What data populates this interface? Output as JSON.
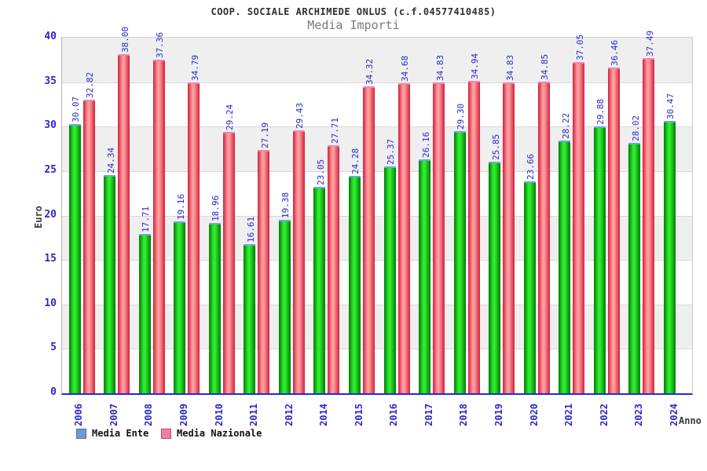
{
  "title": "COOP. SOCIALE ARCHIMEDE ONLUS (c.f.04577410485)",
  "subtitle": "Media Importi",
  "axes": {
    "y_label": "Euro",
    "x_label": "Anno",
    "y_ticks": [
      0,
      5,
      10,
      15,
      20,
      25,
      30,
      35,
      40
    ]
  },
  "legend": [
    {
      "label": "Media Ente",
      "swatch": "#6e9ad2",
      "swatch_border": "#4a6f99"
    },
    {
      "label": "Media Nazionale",
      "swatch": "#ee7fa4",
      "swatch_border": "#aa5577"
    }
  ],
  "colors": {
    "tick_text": "#2929cc",
    "axis_line": "#2929cc",
    "title_text": "#2e2e2e",
    "subtitle_text": "#7a7a7a",
    "band": "#efefef",
    "grid": "#d9d9d9"
  },
  "chart_data": {
    "type": "bar",
    "title": "COOP. SOCIALE ARCHIMEDE ONLUS (c.f.04577410485)",
    "subtitle": "Media Importi",
    "xlabel": "Anno",
    "ylabel": "Euro",
    "ylim": [
      0,
      40
    ],
    "grid": "alternating-horizontal-bands",
    "legend_position": "bottom-left",
    "categories": [
      "2006",
      "2007",
      "2008",
      "2009",
      "2010",
      "2011",
      "2012",
      "2014",
      "2015",
      "2016",
      "2017",
      "2018",
      "2019",
      "2020",
      "2021",
      "2022",
      "2023",
      "2024"
    ],
    "series": [
      {
        "name": "Media Ente",
        "edge_color": "#067a06",
        "mid_color": "#2dee2d",
        "cap_color": "#6fa8dc",
        "values": [
          30.07,
          24.34,
          17.71,
          19.16,
          18.96,
          16.61,
          19.38,
          23.05,
          24.28,
          25.37,
          26.16,
          29.3,
          25.85,
          23.66,
          28.22,
          29.88,
          28.02,
          30.47
        ]
      },
      {
        "name": "Media Nazionale",
        "edge_color": "#d41f3e",
        "mid_color": "#ff9e9e",
        "cap_color": "#f287ab",
        "values": [
          32.82,
          38.0,
          37.36,
          34.79,
          29.24,
          27.19,
          29.43,
          27.71,
          34.32,
          34.68,
          34.83,
          34.94,
          34.83,
          34.85,
          37.05,
          36.46,
          37.49,
          null
        ]
      }
    ]
  }
}
